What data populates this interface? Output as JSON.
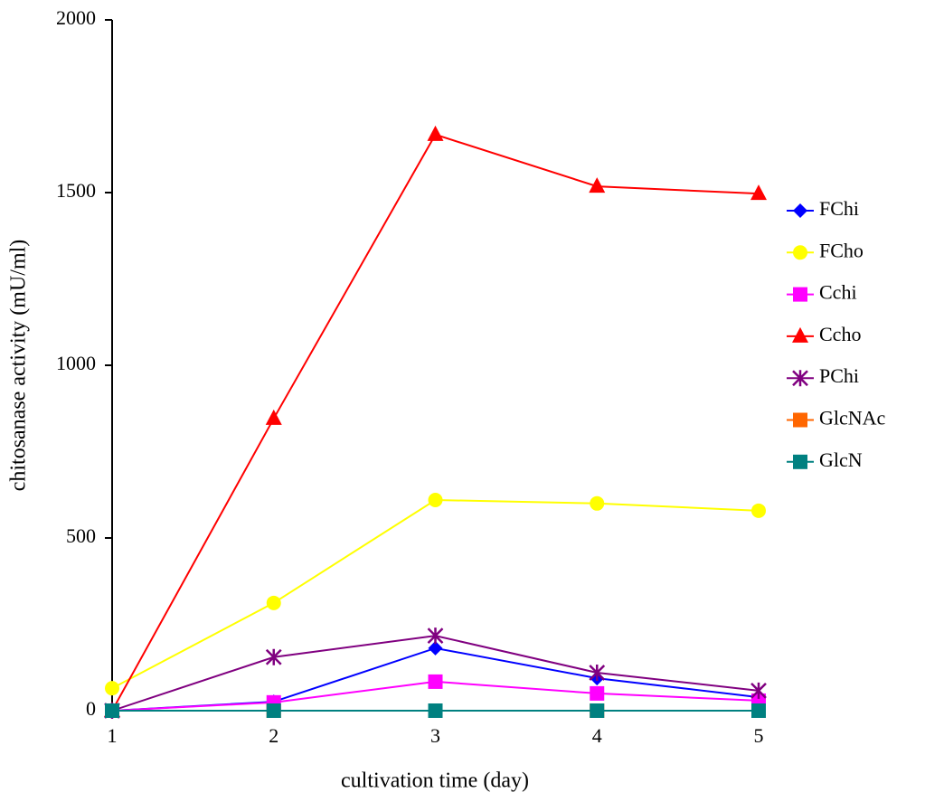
{
  "chart_data": {
    "type": "line",
    "x_label": "cultivation time (day)",
    "y_label": "chitosanase activity (mU/ml)",
    "x": [
      1,
      2,
      3,
      4,
      5
    ],
    "xlim": [
      1,
      5
    ],
    "xticks": [
      1,
      2,
      3,
      4,
      5
    ],
    "ylim": [
      0,
      2000
    ],
    "yticks": [
      0,
      500,
      1000,
      1500,
      2000
    ],
    "legend": "right",
    "series": [
      {
        "name": "FChi",
        "color": "#0000ff",
        "marker": "diamond",
        "values": [
          0,
          26,
          181,
          94,
          39
        ]
      },
      {
        "name": "FCho",
        "color": "#ffff00",
        "marker": "circle",
        "values": [
          65,
          312,
          610,
          600,
          579
        ]
      },
      {
        "name": "Cchi",
        "color": "#ff00ff",
        "marker": "square",
        "values": [
          0,
          24,
          84,
          50,
          29
        ]
      },
      {
        "name": "Ccho",
        "color": "#ff0000",
        "marker": "triangle",
        "values": [
          0,
          846,
          1668,
          1518,
          1497
        ]
      },
      {
        "name": "PChi",
        "color": "#800080",
        "marker": "asterisk",
        "values": [
          0,
          155,
          217,
          110,
          58
        ]
      },
      {
        "name": "GlcNAc",
        "color": "#ff6600",
        "marker": "square",
        "values": [
          0,
          0,
          0,
          0,
          0
        ]
      },
      {
        "name": "GlcN",
        "color": "#008080",
        "marker": "square",
        "values": [
          0,
          0,
          0,
          0,
          0
        ]
      }
    ]
  }
}
